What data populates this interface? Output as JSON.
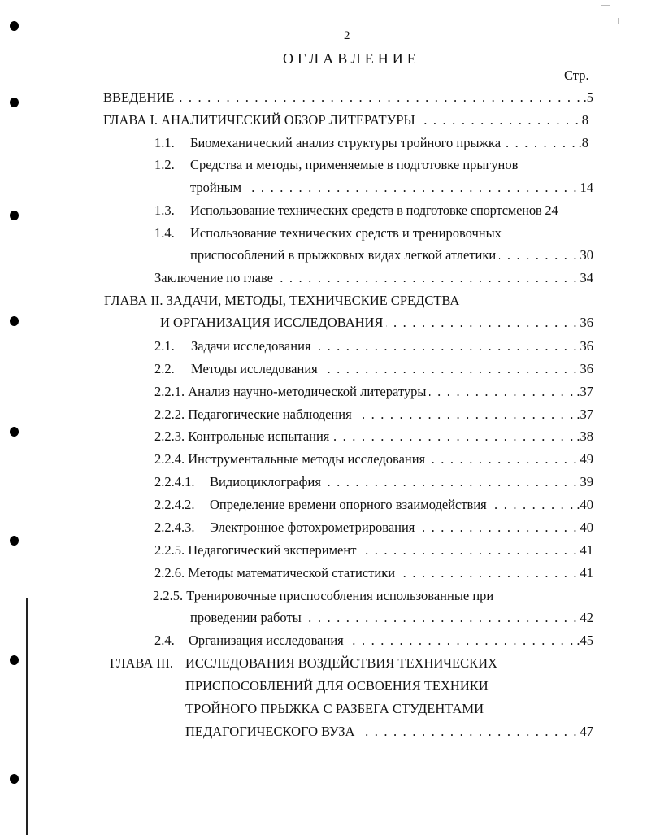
{
  "page_number": "2",
  "title": "ОГЛАВЛЕНИЕ",
  "page_column_label": "Стр.",
  "entries": {
    "intro": {
      "text": "ВВЕДЕНИЕ",
      "page": ".5"
    },
    "ch1": {
      "text": "ГЛАВА I. АНАЛИТИЧЕСКИЙ ОБЗОР ЛИТЕРАТУРЫ",
      "page": "8"
    },
    "s1_1": {
      "num": "1.1.",
      "text": "Биомеханический анализ структуры тройного прыжка",
      "page": ".8"
    },
    "s1_2": {
      "num": "1.2.",
      "text_line1": "Средства и методы, применяемые в подготовке прыгунов",
      "text_line2": "тройным",
      "page": "14"
    },
    "s1_3": {
      "num": "1.3.",
      "text": "Использование технических средств в подготовке спортсменов",
      "page": "24"
    },
    "s1_4": {
      "num": "1.4.",
      "text_line1": "Использование технических средств и тренировочных",
      "text_line2": "приспособлений в прыжковых видах легкой атлетики",
      "page": "30"
    },
    "ch1_concl": {
      "text": "Заключение по главе",
      "page": "34"
    },
    "ch2": {
      "text_line1": "ГЛАВА II. ЗАДАЧИ,  МЕТОДЫ,  ТЕХНИЧЕСКИЕ СРЕДСТВА",
      "text_line2": "И  ОРГАНИЗАЦИЯ ИССЛЕДОВАНИЯ",
      "page": "36"
    },
    "s2_1": {
      "num": "2.1.",
      "text": "Задачи исследования",
      "page": "36"
    },
    "s2_2": {
      "num": "2.2.",
      "text": "Методы исследования",
      "page": "36"
    },
    "s2_2_1": {
      "text": "2.2.1. Анализ научно-методической литературы",
      "page": ".37"
    },
    "s2_2_2": {
      "text": "2.2.2. Педагогические наблюдения",
      "page": ".37"
    },
    "s2_2_3": {
      "text": "2.2.3. Контрольные испытания",
      "page": ".38"
    },
    "s2_2_4": {
      "text": "2.2.4. Инструментальные методы исследования",
      "page": "49"
    },
    "s2_2_4_1": {
      "num": "2.2.4.1.",
      "text": "Видиоциклография",
      "page": "39"
    },
    "s2_2_4_2": {
      "num": "2.2.4.2.",
      "text": "Определение времени опорного взаимодействия",
      "page": ".40"
    },
    "s2_2_4_3": {
      "num": "2.2.4.3.",
      "text": "Электронное фотохрометрирования",
      "page": "40"
    },
    "s2_2_5": {
      "text": "2.2.5. Педагогический эксперимент",
      "page": "41"
    },
    "s2_2_6": {
      "text": "2.2.6. Методы математической статистики",
      "page": "41"
    },
    "s2_2_5b": {
      "text_line1": "2.2.5. Тренировочные приспособления использованные при",
      "text_line2": "проведении работы",
      "page": "42"
    },
    "s2_4": {
      "num": "2.4.",
      "text": "Организация исследования",
      "page": ".45"
    },
    "ch3": {
      "label": "ГЛАВА III.",
      "text_line1": "ИССЛЕДОВАНИЯ ВОЗДЕЙСТВИЯ ТЕХНИЧЕСКИХ",
      "text_line2": "ПРИСПОСОБЛЕНИЙ ДЛЯ ОСВОЕНИЯ ТЕХНИКИ",
      "text_line3": "ТРОЙНОГО ПРЫЖКА С РАЗБЕГА СТУДЕНТАМИ",
      "text_line4": "ПЕДАГОГИЧЕСКОГО  ВУЗА",
      "page": "47"
    }
  }
}
